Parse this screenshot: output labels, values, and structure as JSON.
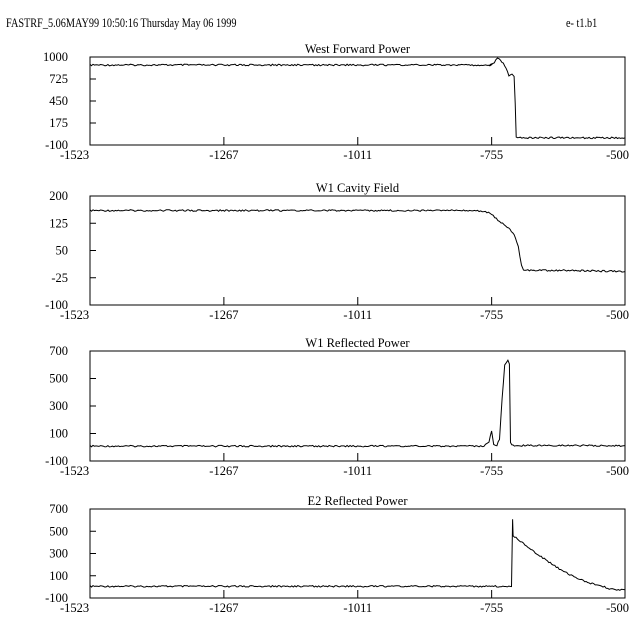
{
  "header": {
    "left": "FASTRF_5.06MAY99    10:50:16 Thursday May 06 1999",
    "right": "e- t1.b1"
  },
  "chart_data": [
    {
      "type": "line",
      "title": "West Forward Power",
      "xlim": [
        -1523,
        -500
      ],
      "ylim": [
        -100,
        1000
      ],
      "xticks": [
        -1523,
        -1267,
        -1011,
        -755,
        -500
      ],
      "yticks": [
        1000,
        725,
        450,
        175,
        -100
      ],
      "series": [
        {
          "points": [
            [
              -1523,
              900
            ],
            [
              -1300,
              900
            ],
            [
              -1000,
              900
            ],
            [
              -755,
              900
            ],
            [
              -760,
              895
            ],
            [
              -750,
              930
            ],
            [
              -744,
              990
            ],
            [
              -738,
              960
            ],
            [
              -730,
              895
            ],
            [
              -722,
              770
            ],
            [
              -716,
              780
            ],
            [
              -712,
              760
            ],
            [
              -710,
              420
            ],
            [
              -708,
              -10
            ],
            [
              -700,
              -10
            ],
            [
              -600,
              -10
            ],
            [
              -500,
              -10
            ]
          ]
        }
      ]
    },
    {
      "type": "line",
      "title": "W1 Cavity Field",
      "xlim": [
        -1523,
        -500
      ],
      "ylim": [
        -100,
        200
      ],
      "xticks": [
        -1523,
        -1267,
        -1011,
        -755,
        -500
      ],
      "yticks": [
        200,
        125,
        50,
        -25,
        -100
      ],
      "series": [
        {
          "points": [
            [
              -1523,
              160
            ],
            [
              -1400,
              160
            ],
            [
              -1200,
              160
            ],
            [
              -1000,
              160
            ],
            [
              -800,
              160
            ],
            [
              -770,
              158
            ],
            [
              -755,
              150
            ],
            [
              -740,
              130
            ],
            [
              -725,
              115
            ],
            [
              -712,
              95
            ],
            [
              -704,
              60
            ],
            [
              -698,
              10
            ],
            [
              -694,
              -5
            ],
            [
              -680,
              -5
            ],
            [
              -600,
              -5
            ],
            [
              -500,
              -8
            ]
          ]
        }
      ]
    },
    {
      "type": "line",
      "title": "W1 Reflected Power",
      "xlim": [
        -1523,
        -500
      ],
      "ylim": [
        -100,
        700
      ],
      "xticks": [
        -1523,
        -1267,
        -1011,
        -755,
        -500
      ],
      "yticks": [
        700,
        500,
        300,
        100,
        -100
      ],
      "series": [
        {
          "points": [
            [
              -1523,
              8
            ],
            [
              -1300,
              8
            ],
            [
              -1000,
              8
            ],
            [
              -800,
              8
            ],
            [
              -770,
              10
            ],
            [
              -760,
              40
            ],
            [
              -755,
              120
            ],
            [
              -751,
              20
            ],
            [
              -745,
              15
            ],
            [
              -740,
              60
            ],
            [
              -735,
              350
            ],
            [
              -730,
              600
            ],
            [
              -724,
              630
            ],
            [
              -721,
              600
            ],
            [
              -719,
              30
            ],
            [
              -714,
              12
            ],
            [
              -700,
              12
            ],
            [
              -600,
              12
            ],
            [
              -500,
              12
            ]
          ]
        }
      ]
    },
    {
      "type": "line",
      "title": "E2 Reflected Power",
      "xlim": [
        -1523,
        -500
      ],
      "ylim": [
        -100,
        700
      ],
      "xticks": [
        -1523,
        -1267,
        -1011,
        -755,
        -500
      ],
      "yticks": [
        700,
        500,
        300,
        100,
        -100
      ],
      "series": [
        {
          "points": [
            [
              -1523,
              5
            ],
            [
              -1300,
              5
            ],
            [
              -1000,
              5
            ],
            [
              -800,
              5
            ],
            [
              -725,
              5
            ],
            [
              -717,
              5
            ],
            [
              -715,
              610
            ],
            [
              -714,
              460
            ],
            [
              -700,
              410
            ],
            [
              -680,
              340
            ],
            [
              -660,
              270
            ],
            [
              -640,
              205
            ],
            [
              -620,
              145
            ],
            [
              -600,
              95
            ],
            [
              -580,
              55
            ],
            [
              -560,
              25
            ],
            [
              -545,
              10
            ],
            [
              -530,
              -20
            ],
            [
              -510,
              -25
            ],
            [
              -500,
              -25
            ]
          ]
        }
      ]
    }
  ]
}
